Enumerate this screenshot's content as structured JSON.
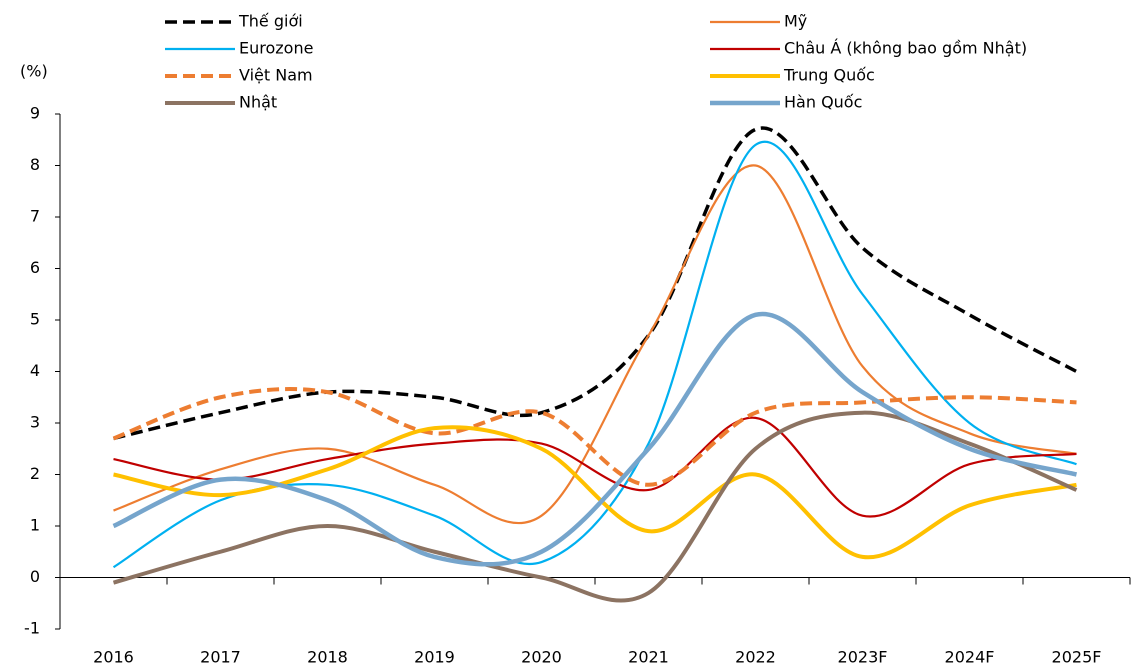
{
  "chart_data": {
    "type": "line",
    "y_label": "(%)",
    "categories": [
      "2016",
      "2017",
      "2018",
      "2019",
      "2020",
      "2021",
      "2022",
      "2023F",
      "2024F",
      "2025F"
    ],
    "ylim": [
      -1,
      9
    ],
    "yticks": [
      -1,
      0,
      1,
      2,
      3,
      4,
      5,
      6,
      7,
      8,
      9
    ],
    "series": [
      {
        "name": "Thế giới",
        "color": "#000000",
        "dash": true,
        "width": 3.5,
        "values": [
          2.7,
          3.2,
          3.6,
          3.5,
          3.2,
          4.7,
          8.7,
          6.4,
          5.1,
          4.0
        ]
      },
      {
        "name": "Mỹ",
        "color": "#ed7d31",
        "dash": false,
        "width": 2.2,
        "values": [
          1.3,
          2.1,
          2.5,
          1.8,
          1.2,
          4.7,
          8.0,
          4.1,
          2.8,
          2.4
        ]
      },
      {
        "name": "Eurozone",
        "color": "#00b0f0",
        "dash": false,
        "width": 2.2,
        "values": [
          0.2,
          1.5,
          1.8,
          1.2,
          0.3,
          2.6,
          8.4,
          5.5,
          3.0,
          2.2
        ]
      },
      {
        "name": "Châu Á (không bao gồm Nhật)",
        "color": "#c00000",
        "dash": false,
        "width": 2.2,
        "values": [
          2.3,
          1.9,
          2.3,
          2.6,
          2.6,
          1.7,
          3.1,
          1.2,
          2.2,
          2.4
        ]
      },
      {
        "name": "Việt Nam",
        "color": "#ed7d31",
        "dash": true,
        "width": 4,
        "values": [
          2.7,
          3.5,
          3.6,
          2.8,
          3.2,
          1.8,
          3.2,
          3.4,
          3.5,
          3.4
        ]
      },
      {
        "name": "Trung Quốc",
        "color": "#ffc000",
        "dash": false,
        "width": 4,
        "values": [
          2.0,
          1.6,
          2.1,
          2.9,
          2.5,
          0.9,
          2.0,
          0.4,
          1.4,
          1.8
        ]
      },
      {
        "name": "Nhật",
        "color": "#8c7362",
        "dash": false,
        "width": 4,
        "values": [
          -0.1,
          0.5,
          1.0,
          0.5,
          0.0,
          -0.3,
          2.5,
          3.2,
          2.6,
          1.7
        ]
      },
      {
        "name": "Hàn Quốc",
        "color": "#76a5cc",
        "dash": false,
        "width": 4.5,
        "values": [
          1.0,
          1.9,
          1.5,
          0.4,
          0.5,
          2.5,
          5.1,
          3.6,
          2.5,
          2.0
        ]
      }
    ]
  }
}
